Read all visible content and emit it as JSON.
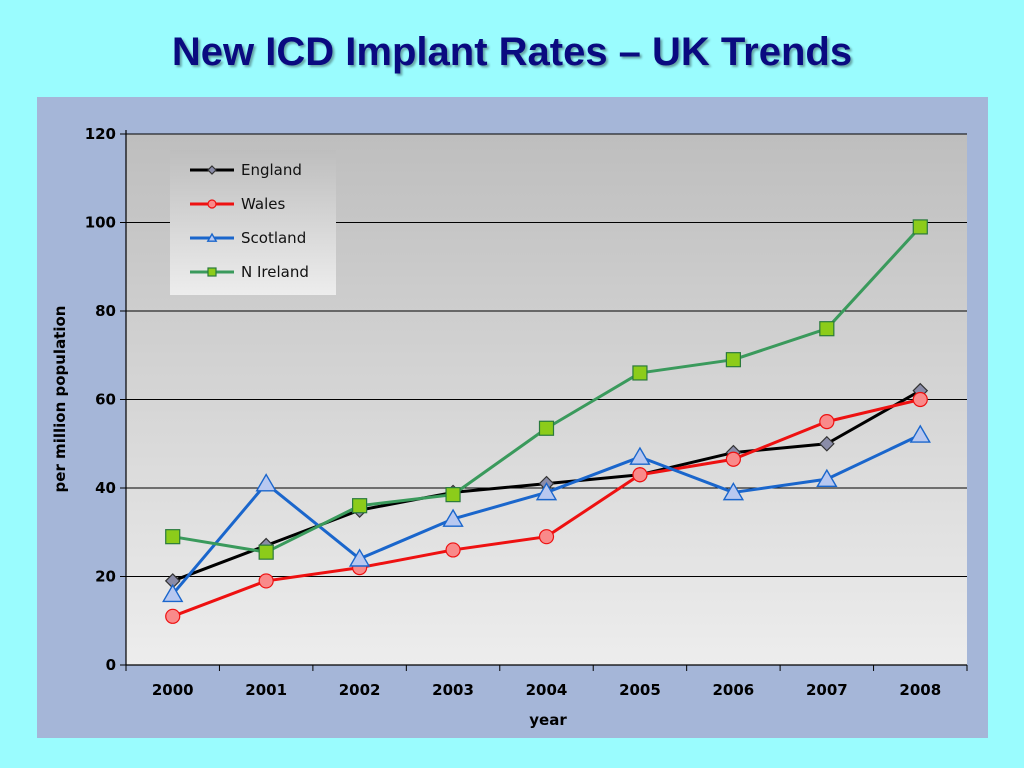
{
  "slide": {
    "title": "New ICD Implant Rates – UK Trends"
  },
  "chart_data": {
    "type": "line",
    "x": [
      2000,
      2001,
      2002,
      2003,
      2004,
      2005,
      2006,
      2007,
      2008
    ],
    "series": [
      {
        "name": "England",
        "values": [
          19,
          27,
          35,
          39,
          41,
          43,
          48,
          50,
          62
        ],
        "color": "#000000",
        "marker": "diamond",
        "marker_fill": "#8A8CA8"
      },
      {
        "name": "Wales",
        "values": [
          11,
          19,
          22,
          26,
          29,
          43,
          46.5,
          55,
          60
        ],
        "color": "#EE1111",
        "marker": "circle",
        "marker_fill": "#F98A8A"
      },
      {
        "name": "Scotland",
        "values": [
          16,
          41,
          24,
          33,
          39,
          47,
          39,
          42,
          52
        ],
        "color": "#1A66CC",
        "marker": "triangle",
        "marker_fill": "#B8C8F0"
      },
      {
        "name": "N Ireland",
        "values": [
          29,
          25.5,
          36,
          38.5,
          53.5,
          66,
          69,
          76,
          99
        ],
        "color": "#3A9A5C",
        "marker": "square",
        "marker_fill": "#8CCC1A"
      }
    ],
    "xlabel": "year",
    "ylabel": "per million population",
    "ylim": [
      0,
      120
    ],
    "yticks": [
      0,
      20,
      40,
      60,
      80,
      100,
      120
    ],
    "grid": true,
    "legend": "top-left"
  }
}
